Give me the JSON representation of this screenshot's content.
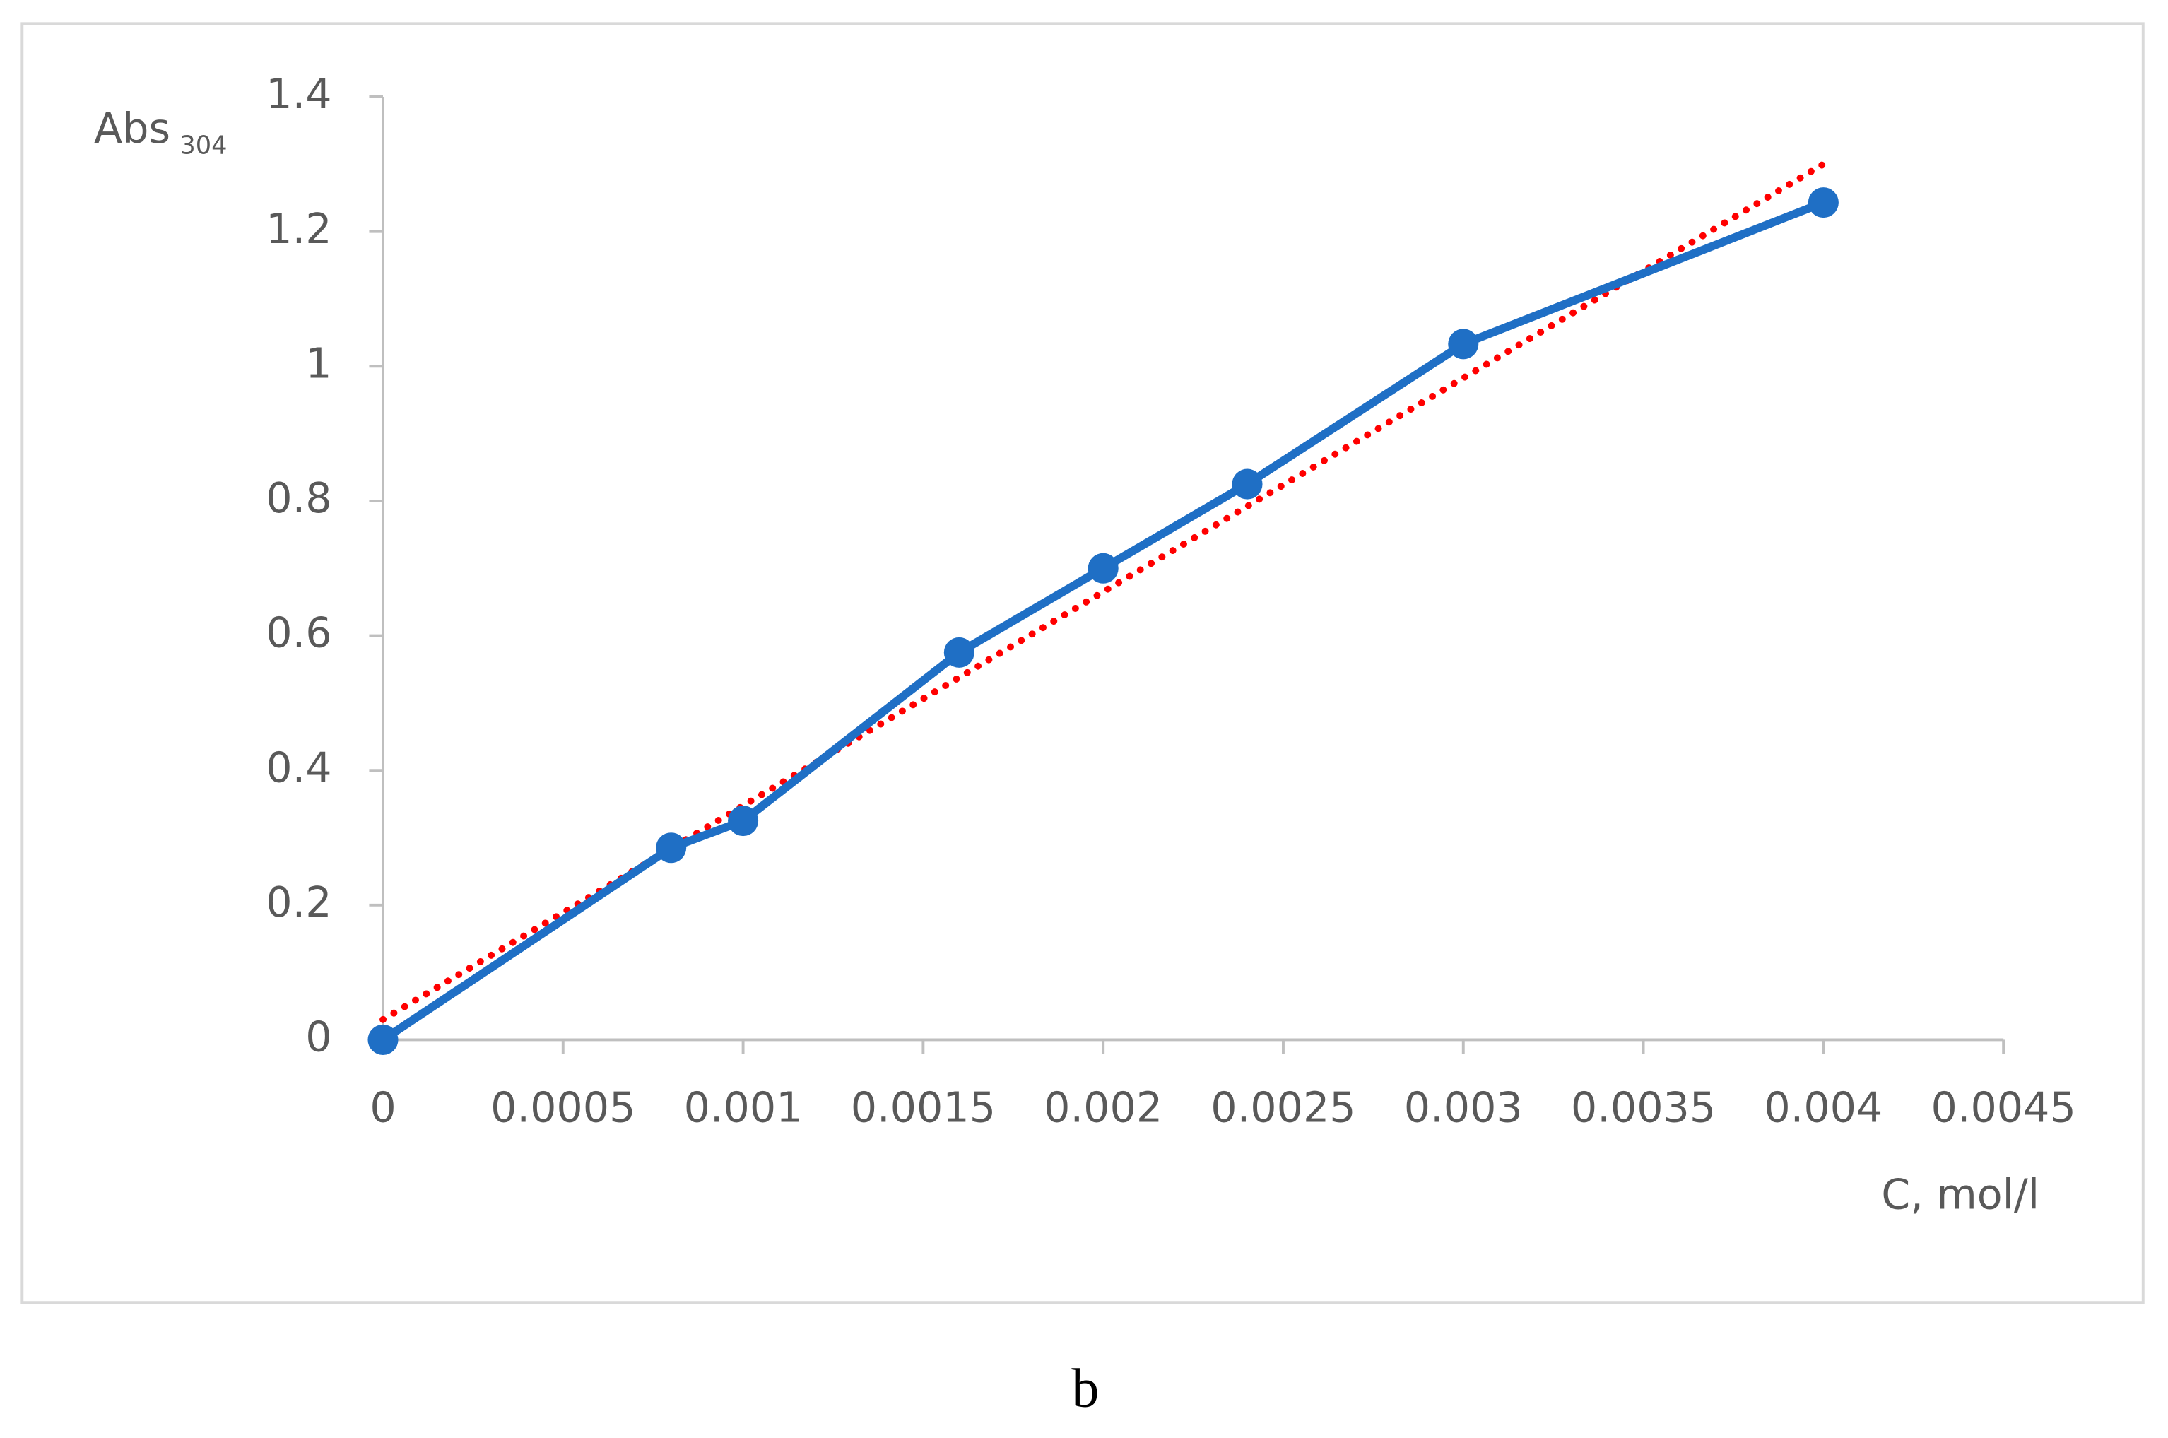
{
  "chart_data": {
    "type": "line",
    "y_label": "Abs",
    "y_label_subscript": "304",
    "x_label": "C, mol/l",
    "caption": "b",
    "x": [
      0,
      0.0008,
      0.001,
      0.0016,
      0.002,
      0.0024,
      0.003,
      0.004
    ],
    "series": [
      {
        "color": "#1f6fc5",
        "values": [
          0,
          0.285,
          0.325,
          0.575,
          0.7,
          0.825,
          1.033,
          1.243
        ]
      }
    ],
    "trendline": {
      "color": "#ff0000",
      "x": [
        0,
        0.004
      ],
      "values": [
        0.03,
        1.3
      ]
    },
    "xlim": [
      0,
      0.0045
    ],
    "xticks": [
      0,
      0.0005,
      0.001,
      0.0015,
      0.002,
      0.0025,
      0.003,
      0.0035,
      0.004,
      0.0045
    ],
    "ylim": [
      0,
      1.4
    ],
    "yticks": [
      0,
      0.2,
      0.4,
      0.6,
      0.8,
      1,
      1.2,
      1.4
    ]
  }
}
